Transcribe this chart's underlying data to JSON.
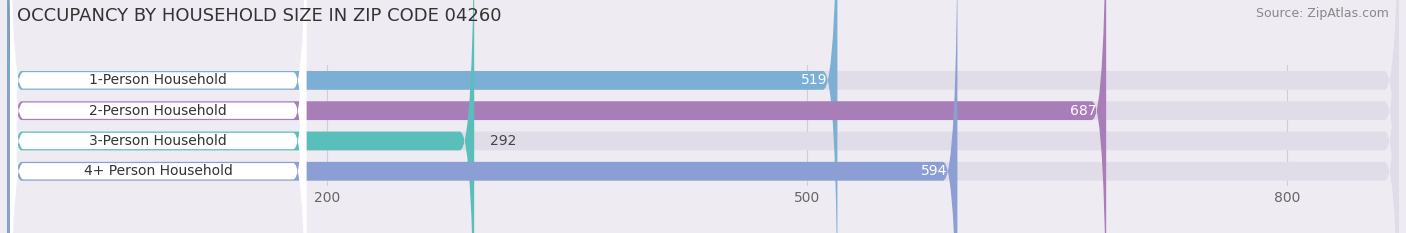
{
  "title": "OCCUPANCY BY HOUSEHOLD SIZE IN ZIP CODE 04260",
  "source": "Source: ZipAtlas.com",
  "categories": [
    "1-Person Household",
    "2-Person Household",
    "3-Person Household",
    "4+ Person Household"
  ],
  "values": [
    519,
    687,
    292,
    594
  ],
  "bar_colors": [
    "#7bafd4",
    "#a87db8",
    "#5abfbb",
    "#8b9fd4"
  ],
  "background_color": "#eeecf2",
  "bar_bg_color": "#e0dde8",
  "label_bg_color": "#ffffff",
  "xlim": [
    0,
    870
  ],
  "xticks": [
    200,
    500,
    800
  ],
  "label_inside_threshold": 350,
  "title_fontsize": 13,
  "source_fontsize": 9,
  "tick_fontsize": 10,
  "bar_label_fontsize": 10,
  "category_fontsize": 10,
  "bar_height": 0.62,
  "figsize": [
    14.06,
    2.33
  ],
  "dpi": 100
}
